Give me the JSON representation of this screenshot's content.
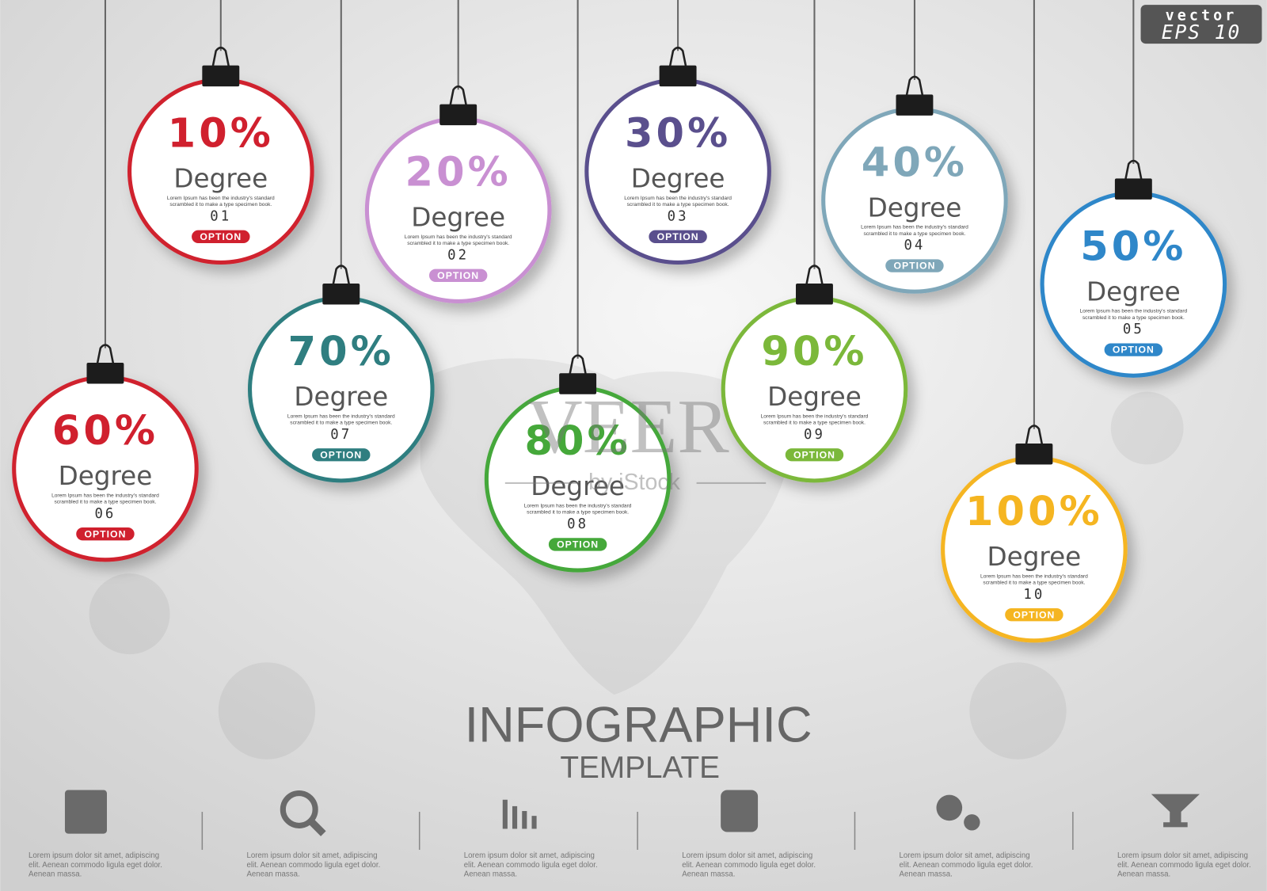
{
  "badge": {
    "top": "vector",
    "bottom": "EPS 10"
  },
  "watermark": {
    "brand": "VEER",
    "by": "by iStock"
  },
  "items": [
    {
      "percent": "10%",
      "label": "Degree",
      "text": [
        "Lorem Ipsum has been the industry's standard",
        "scrambled it to make a type specimen book."
      ],
      "number": "01",
      "button": "OPTION",
      "color": "#d0202e"
    },
    {
      "percent": "20%",
      "label": "Degree",
      "text": [
        "Lorem Ipsum has been the industry's standard",
        "scrambled it to make a type specimen book."
      ],
      "number": "02",
      "button": "OPTION",
      "color": "#c990d2"
    },
    {
      "percent": "30%",
      "label": "Degree",
      "text": [
        "Lorem Ipsum has been the industry's standard",
        "scrambled it to make a type specimen book."
      ],
      "number": "03",
      "button": "OPTION",
      "color": "#5a4f8d"
    },
    {
      "percent": "40%",
      "label": "Degree",
      "text": [
        "Lorem Ipsum has been the industry's standard",
        "scrambled it to make a type specimen book."
      ],
      "number": "04",
      "button": "OPTION",
      "color": "#7fa7b9"
    },
    {
      "percent": "50%",
      "label": "Degree",
      "text": [
        "Lorem Ipsum has been the industry's standard",
        "scrambled it to make a type specimen book."
      ],
      "number": "05",
      "button": "OPTION",
      "color": "#2f87c9"
    },
    {
      "percent": "60%",
      "label": "Degree",
      "text": [
        "Lorem Ipsum has been the industry's standard",
        "scrambled it to make a type specimen book."
      ],
      "number": "06",
      "button": "OPTION",
      "color": "#d0202e"
    },
    {
      "percent": "70%",
      "label": "Degree",
      "text": [
        "Lorem Ipsum has been the industry's standard",
        "scrambled it to make a type specimen book."
      ],
      "number": "07",
      "button": "OPTION",
      "color": "#2f7e80"
    },
    {
      "percent": "80%",
      "label": "Degree",
      "text": [
        "Lorem Ipsum has been the industry's standard",
        "scrambled it to make a type specimen book."
      ],
      "number": "08",
      "button": "OPTION",
      "color": "#45a83a"
    },
    {
      "percent": "90%",
      "label": "Degree",
      "text": [
        "Lorem Ipsum has been the industry's standard",
        "scrambled it to make a type specimen book."
      ],
      "number": "09",
      "button": "OPTION",
      "color": "#7bb83a"
    },
    {
      "percent": "100%",
      "label": "Degree",
      "text": [
        "Lorem Ipsum has been the industry's standard",
        "scrambled it to make a type specimen book."
      ],
      "number": "10",
      "button": "OPTION",
      "color": "#f5b521"
    }
  ],
  "title": "INFOGRAPHIC",
  "subtitle": "TEMPLATE",
  "footer": [
    [
      "Lorem ipsum dolor sit amet,  adipiscing",
      "elit. Aenean commodo ligula eget dolor.",
      "Aenean massa."
    ],
    [
      "Lorem ipsum dolor sit amet,  adipiscing",
      "elit. Aenean commodo ligula eget dolor.",
      "Aenean massa."
    ],
    [
      "Lorem ipsum dolor sit amet,  adipiscing",
      "elit. Aenean commodo ligula eget dolor.",
      "Aenean massa."
    ],
    [
      "Lorem ipsum dolor sit amet,  adipiscing",
      "elit. Aenean commodo ligula eget dolor.",
      "Aenean massa."
    ],
    [
      "Lorem ipsum dolor sit amet,  adipiscing",
      "elit. Aenean commodo ligula eget dolor.",
      "Aenean massa."
    ],
    [
      "Lorem ipsum dolor sit amet,  adipiscing",
      "elit. Aenean commodo ligula eget dolor.",
      "Aenean massa."
    ]
  ]
}
